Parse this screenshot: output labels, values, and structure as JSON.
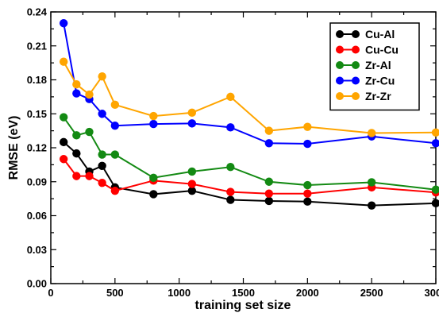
{
  "chart_data": {
    "type": "line",
    "xlabel": "training set size",
    "ylabel": "RMSE (eV)",
    "xlim": [
      0,
      3000
    ],
    "ylim": [
      0,
      0.24
    ],
    "xticks": [
      0,
      500,
      1000,
      1500,
      2000,
      2500,
      3000
    ],
    "xtick_labels": [
      "0",
      "500",
      "1000",
      "1500",
      "2000",
      "2500",
      "3000"
    ],
    "yticks": [
      0,
      0.03,
      0.06,
      0.09,
      0.12,
      0.15,
      0.18,
      0.21,
      0.24
    ],
    "ytick_labels": [
      "0.00",
      "0.03",
      "0.06",
      "0.09",
      "0.12",
      "0.15",
      "0.18",
      "0.21",
      "0.24"
    ],
    "grid": false,
    "legend_position": "top-right",
    "series": [
      {
        "name": "Cu-Al",
        "color": "#000000",
        "x": [
          100,
          200,
          300,
          400,
          500,
          800,
          1100,
          1400,
          1700,
          2000,
          2500,
          3000
        ],
        "values": [
          0.125,
          0.115,
          0.099,
          0.104,
          0.085,
          0.079,
          0.082,
          0.074,
          0.073,
          0.0725,
          0.069,
          0.071
        ]
      },
      {
        "name": "Cu-Cu",
        "color": "#ff0000",
        "x": [
          100,
          200,
          300,
          400,
          500,
          800,
          1100,
          1400,
          1700,
          2000,
          2500,
          3000
        ],
        "values": [
          0.11,
          0.095,
          0.095,
          0.089,
          0.082,
          0.091,
          0.088,
          0.081,
          0.0795,
          0.0795,
          0.085,
          0.0805
        ]
      },
      {
        "name": "Zr-Al",
        "color": "#138a13",
        "x": [
          100,
          200,
          300,
          400,
          500,
          800,
          1100,
          1400,
          1700,
          2000,
          2500,
          3000
        ],
        "values": [
          0.147,
          0.131,
          0.134,
          0.114,
          0.114,
          0.0935,
          0.099,
          0.103,
          0.09,
          0.087,
          0.0895,
          0.083
        ]
      },
      {
        "name": "Zr-Cu",
        "color": "#0000ff",
        "x": [
          100,
          200,
          300,
          400,
          500,
          800,
          1100,
          1400,
          1700,
          2000,
          2500,
          3000
        ],
        "values": [
          0.23,
          0.168,
          0.163,
          0.15,
          0.1395,
          0.141,
          0.1415,
          0.138,
          0.124,
          0.1235,
          0.13,
          0.124
        ]
      },
      {
        "name": "Zr-Zr",
        "color": "#ffa500",
        "x": [
          100,
          200,
          300,
          400,
          500,
          800,
          1100,
          1400,
          1700,
          2000,
          2500,
          3000
        ],
        "values": [
          0.196,
          0.176,
          0.167,
          0.183,
          0.158,
          0.148,
          0.151,
          0.165,
          0.135,
          0.1385,
          0.133,
          0.1335
        ]
      }
    ]
  }
}
